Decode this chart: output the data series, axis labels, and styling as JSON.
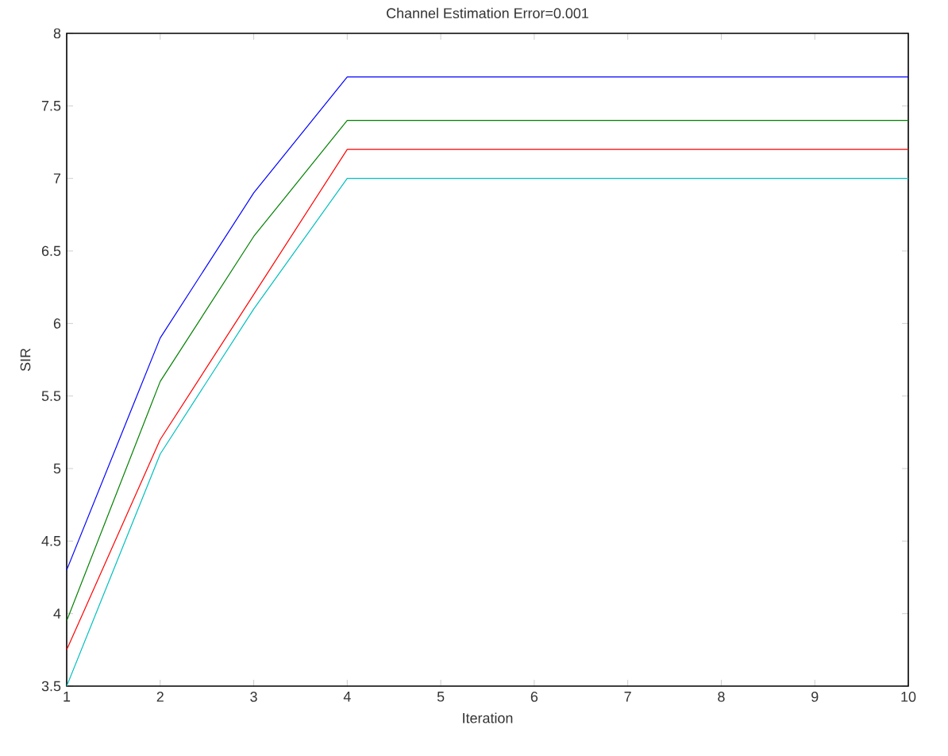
{
  "chart_data": {
    "type": "line",
    "title": "Channel Estimation Error=0.001",
    "xlabel": "Iteration",
    "ylabel": "SIR",
    "x": [
      1,
      2,
      3,
      4,
      5,
      6,
      7,
      8,
      9,
      10
    ],
    "series": [
      {
        "color": "#0000ff",
        "values": [
          4.3,
          5.9,
          6.9,
          7.7,
          7.7,
          7.7,
          7.7,
          7.7,
          7.7,
          7.7
        ]
      },
      {
        "color": "#008000",
        "values": [
          3.95,
          5.6,
          6.6,
          7.4,
          7.4,
          7.4,
          7.4,
          7.4,
          7.4,
          7.4
        ]
      },
      {
        "color": "#ff0000",
        "values": [
          3.75,
          5.2,
          6.2,
          7.2,
          7.2,
          7.2,
          7.2,
          7.2,
          7.2,
          7.2
        ]
      },
      {
        "color": "#00bfbf",
        "values": [
          3.5,
          5.1,
          6.1,
          7.0,
          7.0,
          7.0,
          7.0,
          7.0,
          7.0,
          7.0
        ]
      }
    ],
    "xlim": [
      1,
      10
    ],
    "ylim": [
      3.5,
      8
    ],
    "xticks": [
      1,
      2,
      3,
      4,
      5,
      6,
      7,
      8,
      9,
      10
    ],
    "yticks": [
      {
        "value": 3.5,
        "label": "3.5"
      },
      4,
      {
        "value": 4.5,
        "label": "4.5"
      },
      5,
      {
        "value": 5.5,
        "label": "5.5"
      },
      6,
      {
        "value": 6.5,
        "label": "6.5"
      },
      7,
      {
        "value": 7.5,
        "label": "7.5"
      },
      8
    ],
    "marker": "none",
    "line_style": "solid"
  }
}
